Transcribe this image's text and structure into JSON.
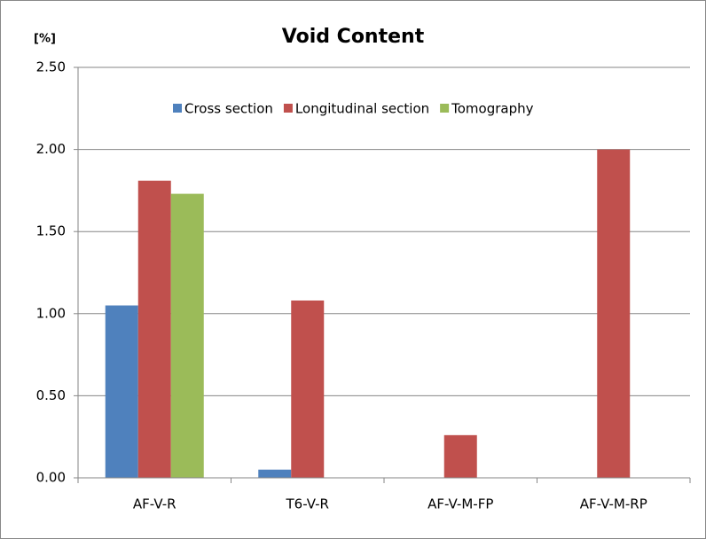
{
  "chart_data": {
    "type": "bar",
    "title": "Void Content",
    "y_label": "[%]",
    "categories": [
      "AF-V-R",
      "T6-V-R",
      "AF-V-M-FP",
      "AF-V-M-RP"
    ],
    "series": [
      {
        "name": "Cross section",
        "color": "#4f81bd",
        "values": [
          1.05,
          0.05,
          null,
          null
        ]
      },
      {
        "name": "Longitudinal section",
        "color": "#c0504d",
        "values": [
          1.81,
          1.08,
          0.26,
          2.0
        ]
      },
      {
        "name": "Tomography",
        "color": "#9bbb59",
        "values": [
          1.73,
          null,
          null,
          null
        ]
      }
    ],
    "ylim": [
      0,
      2.5
    ],
    "yticks": [
      {
        "value": 0,
        "label": "0.00"
      },
      {
        "value": 0.5,
        "label": "0.50"
      },
      {
        "value": 1,
        "label": "1.00"
      },
      {
        "value": 1.5,
        "label": "1.50"
      },
      {
        "value": 2,
        "label": "2.00"
      },
      {
        "value": 2.5,
        "label": "2.50"
      }
    ],
    "grid": true,
    "legend": "top"
  }
}
